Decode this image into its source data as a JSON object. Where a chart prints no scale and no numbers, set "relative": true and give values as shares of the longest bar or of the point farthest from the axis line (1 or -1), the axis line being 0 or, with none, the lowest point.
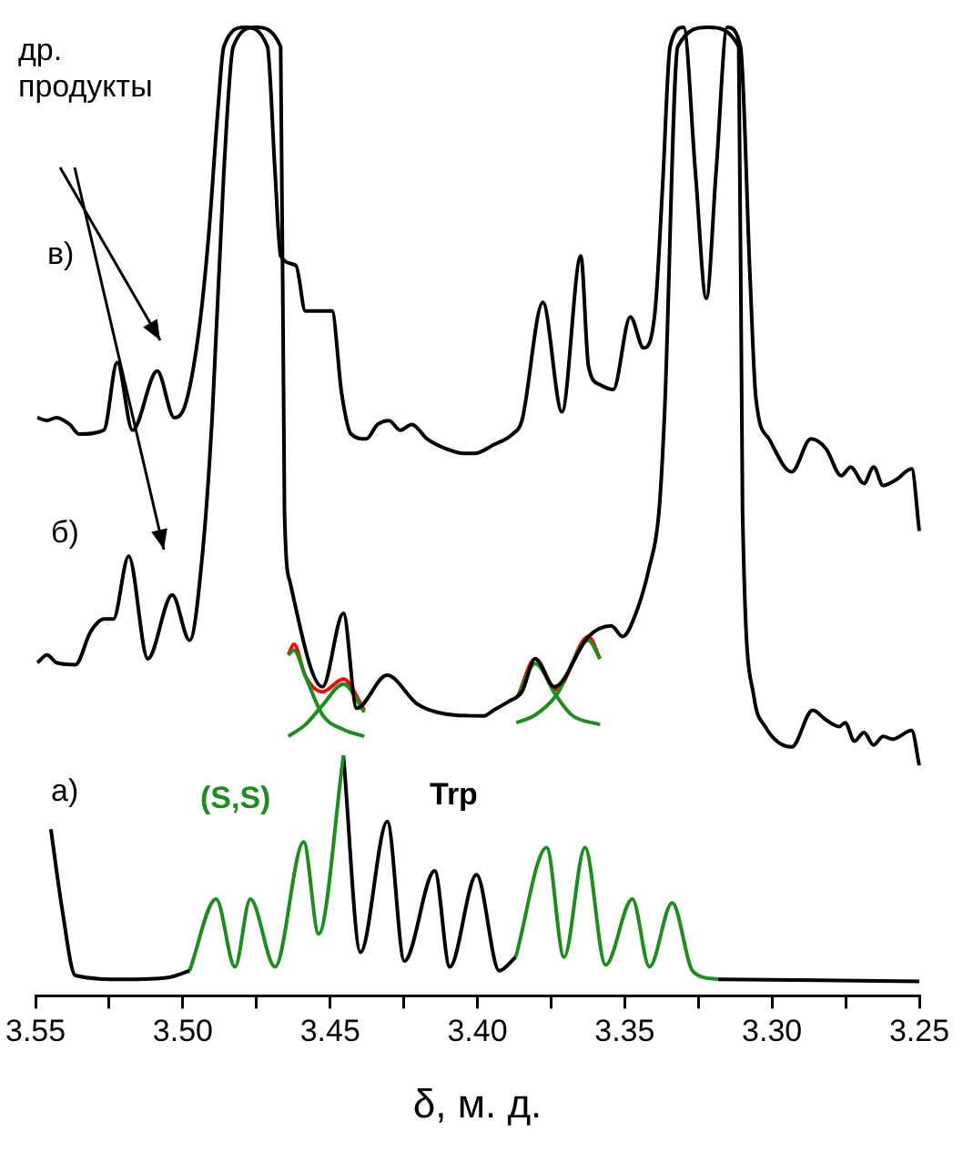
{
  "chart_data": {
    "type": "line",
    "relative": true,
    "xlabel": "δ, м. д.",
    "xlim": [
      3.55,
      3.25
    ],
    "xticks": [
      3.55,
      {
        "value": 3.525,
        "label": null
      },
      "3.50",
      {
        "value": 3.475,
        "label": null
      },
      3.45,
      {
        "value": 3.425,
        "label": null
      },
      "3.40",
      {
        "value": 3.375,
        "label": null
      },
      3.35,
      {
        "value": 3.325,
        "label": null
      },
      "3.30",
      {
        "value": 3.275,
        "label": null
      },
      3.25
    ],
    "grid": false,
    "legend": false,
    "marker": "none",
    "line_style": "solid",
    "tick_labels": "x",
    "annotations": [
      "др. продукты",
      "в)",
      "б)",
      "а)",
      "(S,S)",
      "Trp"
    ],
    "series": [
      {
        "color": "#000000",
        "x": [
          3.5448,
          3.541,
          3.5365,
          3.52,
          3.505,
          3.4977
        ],
        "values": [
          0.172,
          0.09,
          0.021,
          0.017,
          0.019,
          0.026
        ]
      },
      {
        "color": "#1e8c1e",
        "x": [
          3.4977,
          3.4887,
          3.4823,
          3.4771,
          3.4687,
          3.459,
          3.4539,
          3.4455
        ],
        "values": [
          0.026,
          0.1,
          0.03,
          0.1,
          0.03,
          0.159,
          0.064,
          0.248
        ]
      },
      {
        "color": "#000000",
        "x": [
          3.4455,
          3.4397,
          3.4306,
          3.4248,
          3.4145,
          3.4094,
          3.4003,
          3.3926,
          3.387
        ],
        "values": [
          0.248,
          0.045,
          0.18,
          0.036,
          0.129,
          0.03,
          0.125,
          0.026,
          0.04
        ]
      },
      {
        "color": "#1e8c1e",
        "x": [
          3.387,
          3.3765,
          3.3706,
          3.3635,
          3.3565,
          3.3474,
          3.3416,
          3.3339,
          3.3268,
          3.3184
        ],
        "values": [
          0.04,
          0.153,
          0.04,
          0.153,
          0.032,
          0.1,
          0.03,
          0.096,
          0.025,
          0.017
        ]
      },
      {
        "color": "#000000",
        "x": [
          3.3184,
          3.25
        ],
        "values": [
          0.017,
          0.015
        ]
      },
      {
        "color": "#000000",
        "x": [
          3.5494,
          3.5461,
          3.5429,
          3.5365,
          3.5313,
          3.5268,
          3.5236,
          3.5184,
          3.5119,
          3.5036,
          3.4977,
          3.4932,
          3.49,
          3.4861,
          3.4829,
          3.4752,
          3.4668,
          3.4655,
          3.4636,
          3.4526,
          3.4455,
          3.441,
          3.4307,
          3.4203,
          3.4107,
          3.3978,
          3.3945,
          3.3894,
          3.3849,
          3.3804,
          3.3739,
          3.3623,
          3.3546,
          3.3507,
          3.3462,
          3.3417,
          3.3384,
          3.3365,
          3.332,
          3.3217,
          3.3113,
          3.31,
          3.3062,
          3.3023,
          3.2933,
          3.2862,
          3.2817,
          3.2772,
          3.2752,
          3.272,
          3.2688,
          3.2655,
          3.2623,
          3.2591,
          3.2526,
          3.25
        ],
        "values": [
          0.344,
          0.352,
          0.344,
          0.342,
          0.376,
          0.389,
          0.389,
          0.454,
          0.348,
          0.414,
          0.367,
          0.461,
          0.6,
          0.85,
          0.98,
          1,
          0.98,
          0.5,
          0.427,
          0.319,
          0.395,
          0.297,
          0.331,
          0.301,
          0.291,
          0.289,
          0.295,
          0.304,
          0.314,
          0.348,
          0.319,
          0.371,
          0.382,
          0.371,
          0.395,
          0.442,
          0.499,
          0.6,
          0.98,
          1,
          0.98,
          0.5,
          0.31,
          0.278,
          0.257,
          0.295,
          0.285,
          0.278,
          0.282,
          0.263,
          0.272,
          0.259,
          0.268,
          0.265,
          0.274,
          0.238
        ]
      },
      {
        "color": "#000000",
        "x": [
          3.5494,
          3.5461,
          3.5429,
          3.5384,
          3.5352,
          3.5268,
          3.5223,
          3.5171,
          3.5087,
          3.5029,
          3.499,
          3.4945,
          3.4913,
          3.4881,
          3.4861,
          3.479,
          3.4713,
          3.4687,
          3.4668,
          3.4616,
          3.4584,
          3.4494,
          3.4461,
          3.4429,
          3.4378,
          3.4339,
          3.43,
          3.4262,
          3.4223,
          3.4171,
          3.4107,
          3.4042,
          3.401,
          3.3945,
          3.3881,
          3.3849,
          3.3778,
          3.3713,
          3.3649,
          3.3623,
          3.3584,
          3.3539,
          3.3481,
          3.3436,
          3.3397,
          3.3371,
          3.3346,
          3.33,
          3.326,
          3.3223,
          3.319,
          3.3152,
          3.3107,
          3.3075,
          3.3055,
          3.301,
          3.2933,
          3.2868,
          3.2817,
          3.2765,
          3.2733,
          3.2688,
          3.2655,
          3.2623,
          3.2578,
          3.2526,
          3.25
        ],
        "values": [
          0.597,
          0.594,
          0.597,
          0.59,
          0.58,
          0.584,
          0.654,
          0.584,
          0.645,
          0.597,
          0.612,
          0.688,
          0.783,
          0.915,
          0.98,
          1,
          0.98,
          0.85,
          0.764,
          0.754,
          0.707,
          0.707,
          0.622,
          0.58,
          0.575,
          0.59,
          0.594,
          0.584,
          0.59,
          0.575,
          0.565,
          0.56,
          0.56,
          0.569,
          0.58,
          0.594,
          0.716,
          0.603,
          0.764,
          0.65,
          0.631,
          0.626,
          0.701,
          0.669,
          0.707,
          0.839,
          0.98,
          1,
          0.85,
          0.72,
          0.85,
          1,
          0.98,
          0.745,
          0.618,
          0.575,
          0.541,
          0.575,
          0.565,
          0.537,
          0.546,
          0.529,
          0.546,
          0.527,
          0.533,
          0.544,
          0.48
        ]
      },
      {
        "color": "#1e8c1e",
        "x": [
          3.4642,
          3.4623,
          3.4584,
          3.4526,
          3.4455,
          3.4384
        ],
        "values": [
          0.352,
          0.357,
          0.33,
          0.29,
          0.275,
          0.268
        ]
      },
      {
        "color": "#1e8c1e",
        "x": [
          3.4642,
          3.4584,
          3.4526,
          3.4455,
          3.4384
        ],
        "values": [
          0.268,
          0.28,
          0.3,
          0.322,
          0.293
        ]
      },
      {
        "color": "#ff0000",
        "x": [
          3.4642,
          3.4623,
          3.4584,
          3.4526,
          3.4455,
          3.4384
        ],
        "values": [
          0.352,
          0.363,
          0.33,
          0.314,
          0.327,
          0.295
        ]
      },
      {
        "color": "#1e8c1e",
        "x": [
          3.3862,
          3.3804,
          3.3733,
          3.368,
          3.3584
        ],
        "values": [
          0.31,
          0.343,
          0.31,
          0.29,
          0.28
        ]
      },
      {
        "color": "#1e8c1e",
        "x": [
          3.3868,
          3.3804,
          3.3733,
          3.3623,
          3.3584
        ],
        "values": [
          0.282,
          0.29,
          0.31,
          0.367,
          0.348
        ]
      },
      {
        "color": "#ff0000",
        "x": [
          3.3862,
          3.3804,
          3.3733,
          3.3623,
          3.3584
        ],
        "values": [
          0.31,
          0.348,
          0.316,
          0.371,
          0.348
        ]
      }
    ]
  }
}
